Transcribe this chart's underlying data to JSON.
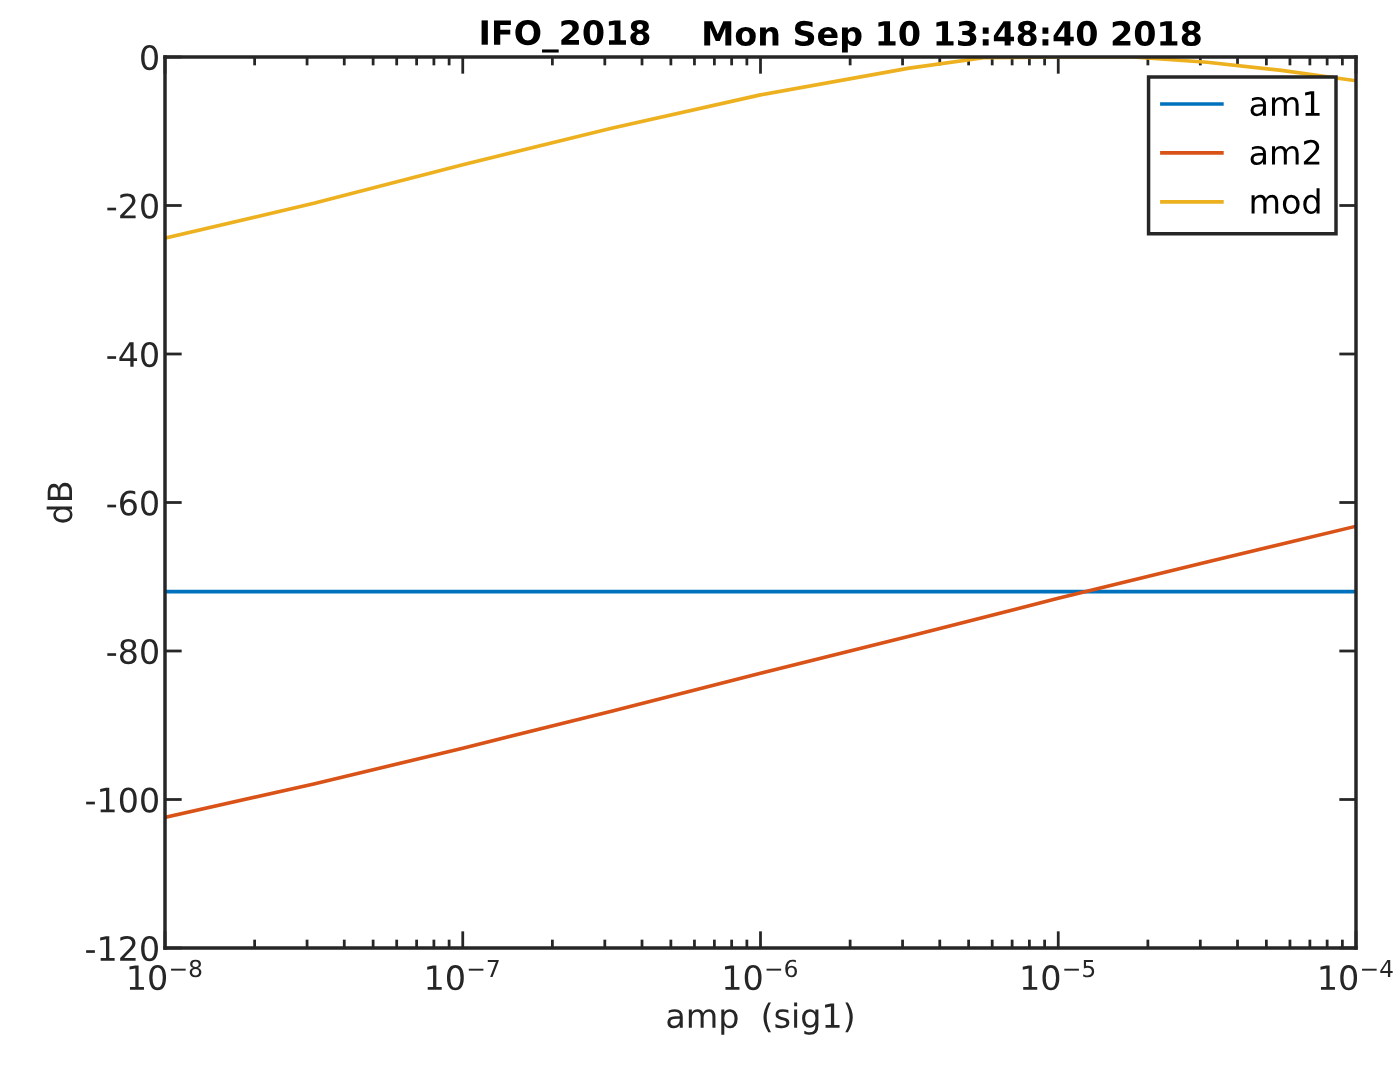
{
  "chart_data": {
    "type": "line",
    "title": "IFO_2018",
    "subtitle": "Mon Sep 10 13:48:40 2018",
    "xlabel": "amp  (sig1)",
    "ylabel": "dB",
    "log": "x",
    "grid": false,
    "legend": "top right",
    "marker": "none",
    "line_style": "solid",
    "xlim": [
      1e-08,
      0.0001
    ],
    "xticks": [
      {
        "value": 1e-08,
        "label": "10$^{−8}$"
      },
      {
        "value": 1e-07,
        "label": "10$^{−7}$"
      },
      {
        "value": 1e-06,
        "label": "10$^{−6}$"
      },
      {
        "value": 1e-05,
        "label": "10$^{−5}$"
      },
      {
        "value": 0.0001,
        "label": "10$^{−4}$"
      }
    ],
    "ylim": [
      -120,
      0
    ],
    "yticks": [
      -120,
      -100,
      -80,
      -60,
      -40,
      -20,
      0
    ],
    "series": [
      {
        "name": "am1",
        "color": "#0072bd",
        "x": [
          1e-08,
          0.0001
        ],
        "values": [
          -72,
          -72
        ]
      },
      {
        "name": "am2",
        "color": "#d95319",
        "x": [
          1e-08,
          3.16e-08,
          1e-07,
          3.16e-07,
          1e-06,
          3.16e-06,
          1e-05,
          3.16e-05,
          0.0001
        ],
        "values": [
          -102.4,
          -97.9,
          -93.1,
          -88.1,
          -83,
          -78,
          -72.9,
          -68,
          -63.2
        ]
      },
      {
        "name": "mod",
        "color": "#edb120",
        "x": [
          1e-08,
          3.16e-08,
          1e-07,
          3.16e-07,
          1e-06,
          3.16e-06,
          5.62e-06,
          1e-05,
          1.78e-05,
          3.16e-05,
          5.62e-05,
          0.0001
        ],
        "values": [
          -24.4,
          -19.7,
          -14.5,
          -9.6,
          -5.1,
          -1.5,
          -0.1,
          0,
          0,
          -0.7,
          -1.8,
          -3.2
        ]
      }
    ]
  }
}
